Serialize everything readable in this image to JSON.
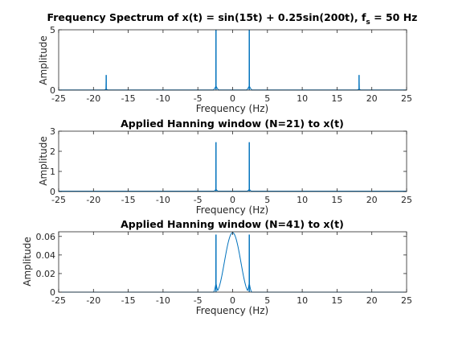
{
  "colors": {
    "line": "#0072BD",
    "axis": "#262626",
    "background": "#ffffff"
  },
  "chart_data": [
    {
      "type": "line",
      "title": "Frequency Spectrum of x(t) = sin(15t) + 0.25sin(200t), f",
      "title_subscript": "s",
      "title_suffix": " = 50 Hz",
      "xlabel": "Frequency (Hz)",
      "ylabel": "Amplitude",
      "xlim": [
        -25,
        25
      ],
      "ylim": [
        0,
        5
      ],
      "xticks": [
        -25,
        -20,
        -15,
        -10,
        -5,
        0,
        5,
        10,
        15,
        20,
        25
      ],
      "xtick_labels": [
        "-25",
        "-20",
        "-15",
        "-10",
        "-5",
        "0",
        "5",
        "10",
        "15",
        "20",
        "25"
      ],
      "yticks": [
        0,
        5
      ],
      "ytick_labels": [
        "0",
        "5"
      ],
      "grid": false,
      "spectrum": {
        "peaks": [
          {
            "f": -18.17,
            "amp": 1.25
          },
          {
            "f": -2.39,
            "amp": 5.0
          },
          {
            "f": 2.39,
            "amp": 5.0
          },
          {
            "f": 18.17,
            "amp": 1.25
          }
        ],
        "skirt": 0.35,
        "skirt_width": 0.45,
        "floor": 0.02
      }
    },
    {
      "type": "line",
      "title": "Applied Hanning window (N=21) to x(t)",
      "xlabel": "Frequency (Hz)",
      "ylabel": "Amplitude",
      "xlim": [
        -25,
        25
      ],
      "ylim": [
        0,
        3
      ],
      "xticks": [
        -25,
        -20,
        -15,
        -10,
        -5,
        0,
        5,
        10,
        15,
        20,
        25
      ],
      "xtick_labels": [
        "-25",
        "-20",
        "-15",
        "-10",
        "-5",
        "0",
        "5",
        "10",
        "15",
        "20",
        "25"
      ],
      "yticks": [
        0,
        1,
        2,
        3
      ],
      "ytick_labels": [
        "0",
        "1",
        "2",
        "3"
      ],
      "grid": false,
      "spectrum": {
        "peaks": [
          {
            "f": -2.39,
            "amp": 2.45
          },
          {
            "f": 2.39,
            "amp": 2.45
          }
        ],
        "skirt": 0.12,
        "skirt_width": 0.4,
        "floor": 0.02
      }
    },
    {
      "type": "line",
      "title": "Applied Hanning window (N=41) to x(t)",
      "xlabel": "Frequency (Hz)",
      "ylabel": "Amplitude",
      "xlim": [
        -25,
        25
      ],
      "ylim": [
        0,
        0.065
      ],
      "xticks": [
        -25,
        -20,
        -15,
        -10,
        -5,
        0,
        5,
        10,
        15,
        20,
        25
      ],
      "xtick_labels": [
        "-25",
        "-20",
        "-15",
        "-10",
        "-5",
        "0",
        "5",
        "10",
        "15",
        "20",
        "25"
      ],
      "yticks": [
        0,
        0.02,
        0.04,
        0.06
      ],
      "ytick_labels": [
        "0",
        "0.02",
        "0.04",
        "0.06"
      ],
      "grid": false,
      "spectrum": {
        "peaks": [
          {
            "f": -2.39,
            "amp": 0.062
          },
          {
            "f": 2.39,
            "amp": 0.062
          }
        ],
        "hump": {
          "center": 0,
          "amp": 0.064,
          "half_width": 2.39
        },
        "skirt": 0.01,
        "skirt_width": 0.35,
        "floor": 0.0
      }
    }
  ]
}
